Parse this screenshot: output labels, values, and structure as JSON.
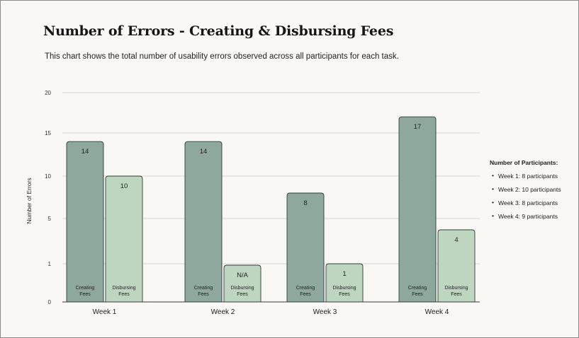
{
  "title": "Number of Errors - Creating & Disbursing Fees",
  "subtitle": "This chart shows the total number of usability errors observed across all participants for each task.",
  "legend": {
    "title": "Number of Participants:",
    "items": [
      "Week 1: 8 participants",
      "Week 2: 10 participants",
      "Week 3: 8 participants",
      "Week 4: 9 participants"
    ]
  },
  "colors": {
    "creating": "#8ea89d",
    "disbursing": "#bed5c0",
    "stroke": "#2f3d36",
    "grid": "#d6d4d0"
  },
  "chart_data": {
    "type": "bar",
    "title": "Number of Errors - Creating & Disbursing Fees",
    "ylabel": "Number of Errors",
    "xlabel": "",
    "categories": [
      "Week 1",
      "Week 2",
      "Week 3",
      "Week 4"
    ],
    "y_ticks": [
      0,
      1,
      5,
      10,
      15,
      20
    ],
    "ylim": [
      0,
      20
    ],
    "grid": true,
    "series": [
      {
        "name": "Creating Fees",
        "values": [
          14,
          14,
          8,
          17
        ],
        "labels": [
          "14",
          "14",
          "8",
          "17"
        ]
      },
      {
        "name": "Disbursing Fees",
        "values": [
          10,
          null,
          1,
          4
        ],
        "labels": [
          "10",
          "N/A",
          "1",
          "4"
        ]
      }
    ]
  }
}
